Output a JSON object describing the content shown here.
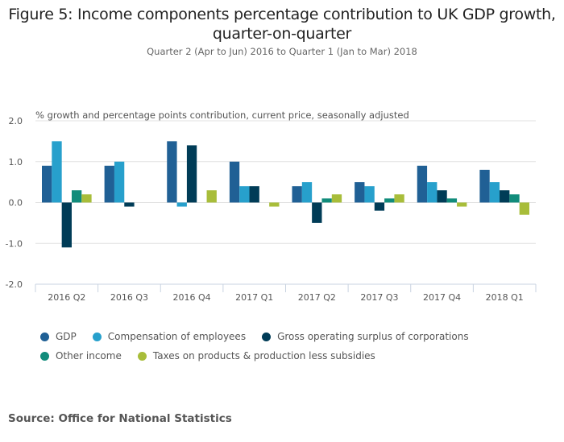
{
  "title": "Figure 5: Income components percentage contribution to UK GDP growth, quarter-on-quarter",
  "subtitle": "Quarter 2 (Apr to Jun) 2016 to Quarter 1 (Jan to Mar) 2018",
  "source": "Source: Office for National Statistics",
  "chart_data": {
    "type": "bar",
    "title": "Figure 5: Income components percentage contribution to UK GDP growth, quarter-on-quarter",
    "subtitle": "Quarter 2 (Apr to Jun) 2016 to Quarter 1 (Jan to Mar) 2018",
    "ylabel": "% growth and percentage points contribution, current price, seasonally adjusted",
    "xlabel": "",
    "ylim": [
      -2.0,
      2.0
    ],
    "yticks": [
      "2.0",
      "1.0",
      "0.0",
      "-1.0",
      "-2.0"
    ],
    "ytick_values": [
      2.0,
      1.0,
      0.0,
      -1.0,
      -2.0
    ],
    "grid": true,
    "legend_position": "bottom",
    "categories": [
      "2016 Q2",
      "2016 Q3",
      "2016 Q4",
      "2017 Q1",
      "2017 Q2",
      "2017 Q3",
      "2017 Q4",
      "2018 Q1"
    ],
    "series": [
      {
        "name": "GDP",
        "color": "#206095",
        "values": [
          0.9,
          0.9,
          1.5,
          1.0,
          0.4,
          0.5,
          0.9,
          0.8
        ]
      },
      {
        "name": "Compensation of employees",
        "color": "#27a0cc",
        "values": [
          1.5,
          1.0,
          -0.1,
          0.4,
          0.5,
          0.4,
          0.5,
          0.5
        ]
      },
      {
        "name": "Gross operating surplus of corporations",
        "color": "#003c57",
        "values": [
          -1.1,
          -0.1,
          1.4,
          0.4,
          -0.5,
          -0.2,
          0.3,
          0.3
        ]
      },
      {
        "name": "Other income",
        "color": "#118c7b",
        "values": [
          0.3,
          0.0,
          0.0,
          0.0,
          0.1,
          0.1,
          0.1,
          0.2
        ]
      },
      {
        "name": "Taxes on products & production less subsidies",
        "color": "#a8bd3a",
        "values": [
          0.2,
          0.0,
          0.3,
          -0.1,
          0.2,
          0.2,
          -0.1,
          -0.3
        ]
      }
    ]
  }
}
